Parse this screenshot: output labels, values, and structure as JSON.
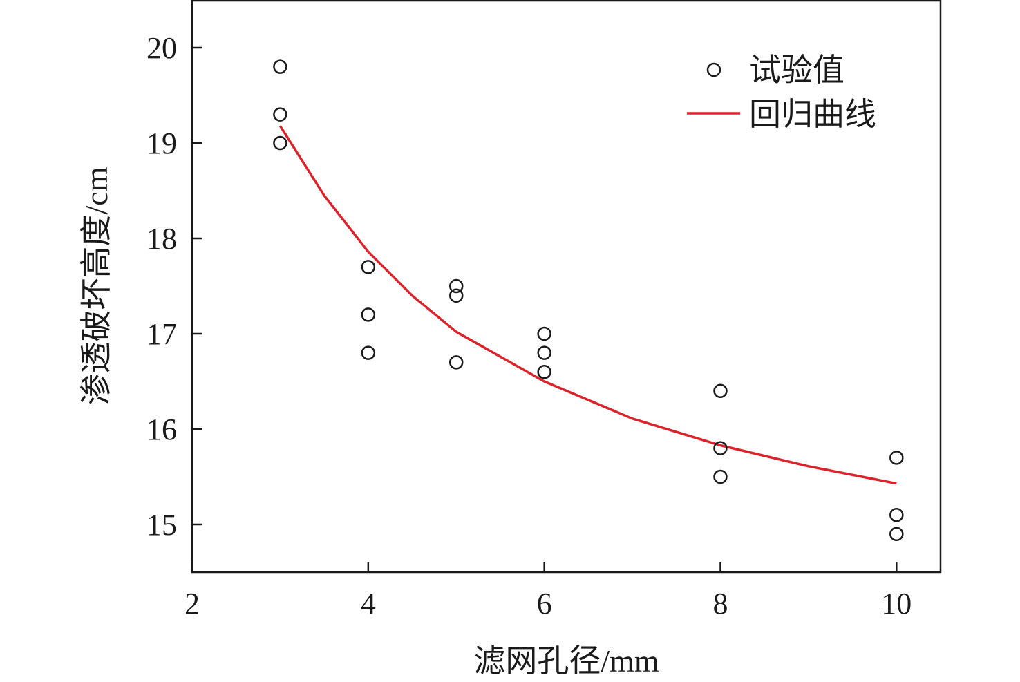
{
  "chart_data": {
    "type": "scatter",
    "title": "",
    "xlabel": "滤网孔径/mm",
    "ylabel": "渗透破坏高度/cm",
    "xlim": [
      2,
      10.5
    ],
    "ylim": [
      14.5,
      20.5
    ],
    "x_ticks": [
      2,
      4,
      6,
      8,
      10
    ],
    "y_ticks": [
      15,
      16,
      17,
      18,
      19,
      20
    ],
    "grid": false,
    "legend_position": "top-right",
    "series": [
      {
        "name": "试验值",
        "kind": "scatter",
        "marker": "open-circle",
        "color": "#1a1a1a",
        "points": [
          {
            "x": 3,
            "y": 19.8
          },
          {
            "x": 3,
            "y": 19.3
          },
          {
            "x": 3,
            "y": 19.0
          },
          {
            "x": 4,
            "y": 17.7
          },
          {
            "x": 4,
            "y": 17.2
          },
          {
            "x": 4,
            "y": 16.8
          },
          {
            "x": 5,
            "y": 17.5
          },
          {
            "x": 5,
            "y": 17.4
          },
          {
            "x": 5,
            "y": 16.7
          },
          {
            "x": 6,
            "y": 17.0
          },
          {
            "x": 6,
            "y": 16.8
          },
          {
            "x": 6,
            "y": 16.6
          },
          {
            "x": 8,
            "y": 16.4
          },
          {
            "x": 8,
            "y": 15.8
          },
          {
            "x": 8,
            "y": 15.5
          },
          {
            "x": 10,
            "y": 15.7
          },
          {
            "x": 10,
            "y": 15.1
          },
          {
            "x": 10,
            "y": 14.9
          }
        ]
      },
      {
        "name": "回归曲线",
        "kind": "line",
        "color": "#d9242b",
        "points": [
          {
            "x": 3,
            "y": 19.18
          },
          {
            "x": 3.5,
            "y": 18.45
          },
          {
            "x": 4,
            "y": 17.86
          },
          {
            "x": 4.5,
            "y": 17.4
          },
          {
            "x": 5,
            "y": 17.02
          },
          {
            "x": 6,
            "y": 16.5
          },
          {
            "x": 7,
            "y": 16.11
          },
          {
            "x": 8,
            "y": 15.83
          },
          {
            "x": 9,
            "y": 15.61
          },
          {
            "x": 10,
            "y": 15.43
          }
        ]
      }
    ]
  }
}
